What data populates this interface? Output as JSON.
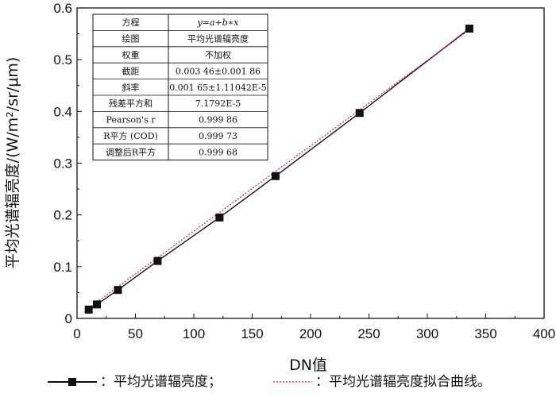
{
  "chart_data": {
    "type": "line",
    "xlabel": "DN值",
    "ylabel": "平均光谱辐亮度/(W/m²/sr/μm)",
    "xlim": [
      0,
      400
    ],
    "ylim": [
      0,
      0.6
    ],
    "x_ticks": [
      "0",
      "50",
      "100",
      "150",
      "200",
      "250",
      "300",
      "350",
      "400"
    ],
    "y_ticks": [
      "0",
      "0.1",
      "0.2",
      "0.3",
      "0.4",
      "0.5",
      "0.6"
    ],
    "series": [
      {
        "name": "平均光谱辐亮度",
        "style": "black solid line with square markers",
        "x": [
          10,
          17,
          35,
          69,
          122,
          170,
          242,
          336
        ],
        "y": [
          0.017,
          0.027,
          0.055,
          0.111,
          0.195,
          0.275,
          0.397,
          0.56
        ]
      },
      {
        "name": "平均光谱辐亮度拟合曲线",
        "style": "red dotted line",
        "fit": {
          "intercept": 0.00346,
          "slope": 0.00165
        }
      }
    ],
    "legend": {
      "position": "bottom",
      "items": [
        {
          "marker": "— ■ —",
          "text": "：平均光谱辐亮度；"
        },
        {
          "marker": "------",
          "text": "：平均光谱辐亮度拟合曲线。"
        }
      ]
    },
    "stats_table": {
      "position": "top-left",
      "rows": [
        [
          "方程",
          "y=a+b∗x"
        ],
        [
          "绘图",
          "平均光谱辐亮度"
        ],
        [
          "权重",
          "不加权"
        ],
        [
          "截距",
          "0.003 46±0.001 86"
        ],
        [
          "斜率",
          "0.001 65±1.11042E-5"
        ],
        [
          "残差平方和",
          "7.1792E-5"
        ],
        [
          "Pearson's r",
          "0.999 86"
        ],
        [
          "R平方 (COD)",
          "0.999 73"
        ],
        [
          "调整后R平方",
          "0.999 68"
        ]
      ]
    },
    "grid": false,
    "colors": {
      "data": "#111111",
      "fit": "#e02020"
    }
  }
}
